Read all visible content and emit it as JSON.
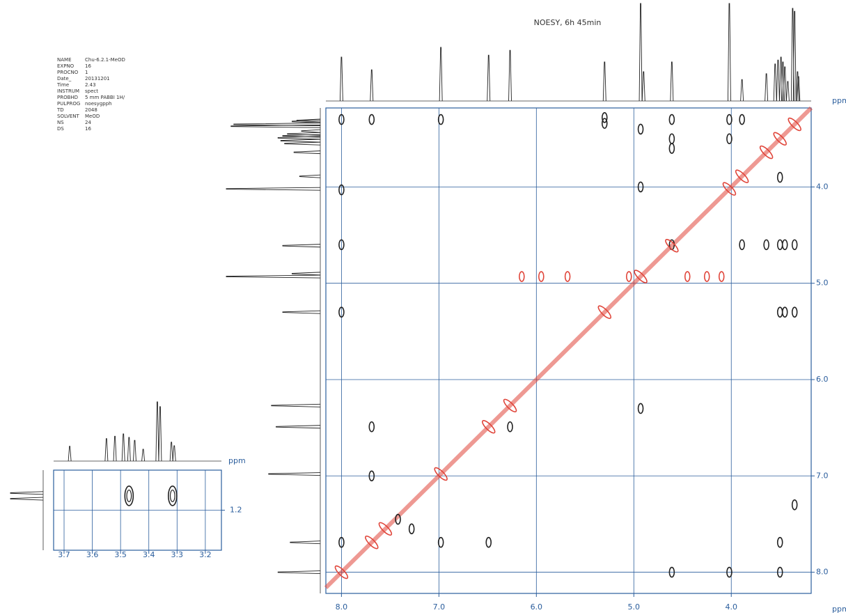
{
  "parameters": [
    [
      "NAME",
      "Chu-6.2.1-MeOD"
    ],
    [
      "EXPNO",
      "16"
    ],
    [
      "PROCNO",
      "1"
    ],
    [
      "Date_",
      "20131201"
    ],
    [
      "Time",
      "2.43"
    ],
    [
      "INSTRUM",
      "spect"
    ],
    [
      "PROBHD",
      "5 mm PABBI 1H/"
    ],
    [
      "PULPROG",
      "noesygpph"
    ],
    [
      "TD",
      "2048"
    ],
    [
      "SOLVENT",
      "MeOD"
    ],
    [
      "NS",
      "24"
    ],
    [
      "DS",
      "16"
    ]
  ],
  "chart_data": [
    {
      "type": "noesy",
      "title": "NOESY, 6h 45min",
      "x_label": "ppm",
      "y_label": "ppm",
      "xlim": [
        8.16,
        3.18
      ],
      "ylim": [
        3.18,
        8.22
      ],
      "xticks": [
        {
          "value": 8,
          "label": "8.0"
        },
        {
          "value": 7,
          "label": "7.0"
        },
        {
          "value": 6,
          "label": "6.0"
        },
        {
          "value": 5,
          "label": "5.0"
        },
        {
          "value": 4,
          "label": "4.0"
        }
      ],
      "yticks": [
        {
          "value": 4,
          "label": "4.0"
        },
        {
          "value": 5,
          "label": "5.0"
        },
        {
          "value": 6,
          "label": "6.0"
        },
        {
          "value": 7,
          "label": "7.0"
        },
        {
          "value": 8,
          "label": "8.0"
        }
      ],
      "grid": true,
      "projection": {
        "ppm": [
          8.0,
          7.69,
          6.98,
          6.49,
          6.27,
          5.3,
          4.93,
          4.9,
          4.61,
          4.02,
          3.89,
          3.64,
          3.55,
          3.52,
          3.49,
          3.47,
          3.45,
          3.42,
          3.37,
          3.35,
          3.32,
          3.31
        ],
        "intensity": [
          45,
          32,
          55,
          47,
          52,
          40,
          100,
          30,
          40,
          100,
          22,
          28,
          38,
          42,
          45,
          40,
          35,
          20,
          95,
          92,
          30,
          25
        ]
      },
      "series": [
        {
          "color": "#222222",
          "x": [
            8.0,
            8.0,
            8.0,
            8.0,
            7.69,
            6.98,
            5.3,
            5.3,
            4.61,
            4.61,
            4.61,
            4.61,
            4.02,
            4.02,
            3.89,
            3.89,
            3.64,
            3.5,
            3.45,
            3.5,
            3.5,
            3.45,
            3.35,
            3.35,
            7.69,
            6.98,
            4.02,
            3.5,
            3.5,
            4.61,
            7.69,
            6.49,
            6.27,
            3.35,
            8.0,
            4.93,
            4.93,
            4.93,
            7.42,
            7.28
          ],
          "y": [
            3.3,
            4.03,
            4.6,
            5.3,
            3.3,
            3.3,
            3.28,
            3.34,
            3.3,
            3.5,
            3.6,
            4.6,
            3.3,
            3.5,
            3.3,
            4.6,
            4.6,
            4.6,
            4.6,
            3.9,
            5.3,
            5.3,
            5.3,
            4.6,
            7.0,
            7.69,
            8.0,
            8.0,
            7.69,
            8.0,
            6.49,
            7.69,
            6.49,
            7.3,
            7.69,
            3.4,
            4.0,
            6.3,
            7.45,
            7.55
          ]
        },
        {
          "color": "#e0453a",
          "x": [
            8.0,
            7.69,
            7.55,
            6.98,
            6.49,
            6.27,
            5.3,
            4.93,
            4.61,
            4.02,
            3.89,
            3.64,
            3.5,
            3.35,
            6.15,
            5.95,
            5.68,
            5.05,
            4.45,
            4.25,
            4.1
          ],
          "y": [
            8.0,
            7.69,
            7.55,
            6.98,
            6.49,
            6.27,
            5.3,
            4.93,
            4.61,
            4.02,
            3.89,
            3.64,
            3.5,
            3.35,
            4.93,
            4.93,
            4.93,
            4.93,
            4.93,
            4.93,
            4.93
          ]
        }
      ]
    },
    {
      "type": "noesy",
      "x_label": "ppm",
      "xlim": [
        3.737,
        3.143
      ],
      "ylim": [
        1.06,
        1.34
      ],
      "xticks": [
        3.7,
        3.6,
        3.5,
        3.4,
        3.3,
        3.2
      ],
      "yticks": [
        1.2
      ],
      "grid": true,
      "projection": {
        "ppm": [
          3.68,
          3.55,
          3.52,
          3.49,
          3.47,
          3.45,
          3.42,
          3.37,
          3.36,
          3.32,
          3.31
        ],
        "intensity": [
          25,
          38,
          42,
          46,
          40,
          35,
          20,
          100,
          92,
          32,
          26
        ]
      },
      "y_projection": {
        "ppm": [
          1.14,
          1.16
        ],
        "intensity": [
          100,
          100
        ]
      },
      "series": [
        {
          "color": "#222222",
          "x": [
            3.47,
            3.316
          ],
          "y": [
            1.15,
            1.15
          ]
        }
      ]
    }
  ]
}
